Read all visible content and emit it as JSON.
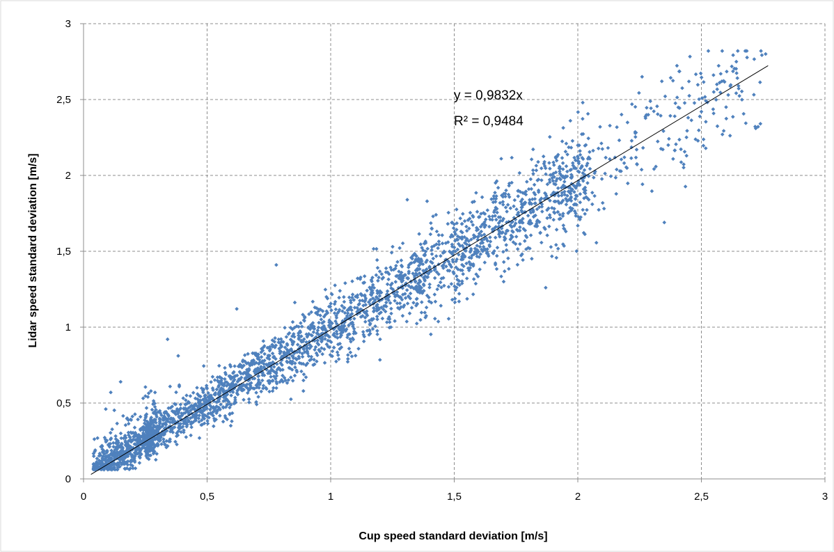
{
  "chart_data": {
    "type": "scatter",
    "title": "",
    "xlabel": "Cup speed standard deviation  [m/s]",
    "ylabel": "Lidar speed standard deviation [m/s]",
    "xlim": [
      0,
      3
    ],
    "ylim": [
      0,
      3
    ],
    "xticks": [
      "0",
      "0,5",
      "1",
      "1,5",
      "2",
      "2,5",
      "3"
    ],
    "yticks": [
      "0",
      "0,5",
      "1",
      "1,5",
      "2",
      "2,5",
      "3"
    ],
    "grid": true,
    "legend": "none",
    "series": [
      {
        "color": "#4f81bd",
        "marker": "diamond",
        "trend_slope": 0.9832,
        "trend_x_range": [
          0.03,
          2.77
        ],
        "point_count_approx": 3000,
        "scatter_std_base": 0.045,
        "scatter_std_per_unit": 0.06,
        "points": [
          [
            0.34,
            0.92
          ],
          [
            0.78,
            1.41
          ],
          [
            0.15,
            0.64
          ],
          [
            1.87,
            1.26
          ],
          [
            2.76,
            2.8
          ],
          [
            2.26,
            2.65
          ],
          [
            2.34,
            2.62
          ],
          [
            2.35,
            1.69
          ],
          [
            2.72,
            2.31
          ],
          [
            2.02,
            2.48
          ],
          [
            0.62,
            1.12
          ],
          [
            1.31,
            1.84
          ],
          [
            1.39,
            1.83
          ],
          [
            1.69,
            2.11
          ],
          [
            1.97,
            2.36
          ],
          [
            2.09,
            2.32
          ],
          [
            0.11,
            0.57
          ],
          [
            0.09,
            0.46
          ],
          [
            2.55,
            2.55
          ],
          [
            2.65,
            2.59
          ],
          [
            2.5,
            2.42
          ],
          [
            2.44,
            2.13
          ],
          [
            1.7,
            1.3
          ],
          [
            1.52,
            1.22
          ],
          [
            1.2,
            0.92
          ],
          [
            0.2,
            0.07
          ],
          [
            0.6,
            0.38
          ],
          [
            0.9,
            0.67
          ],
          [
            1.56,
            1.65
          ],
          [
            2.6,
            2.45
          ]
        ]
      }
    ],
    "annotations": [
      "y = 0,9832x",
      "R² = 0,9484"
    ]
  }
}
